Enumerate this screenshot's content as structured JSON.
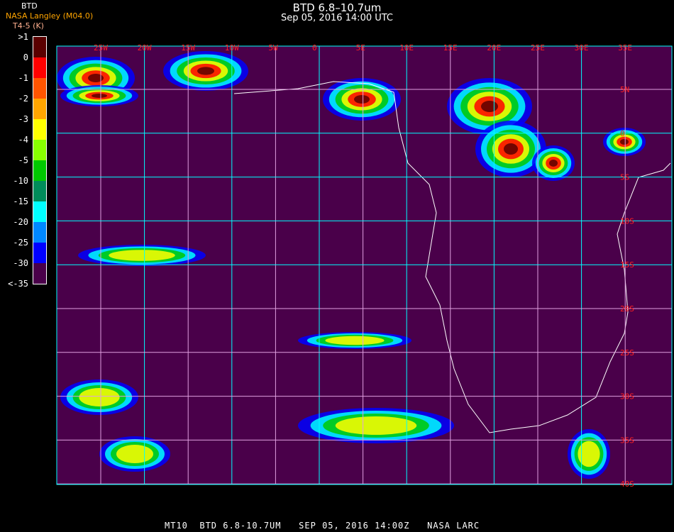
{
  "header": {
    "title": "BTD 6.8–10.7um",
    "subtitle": "Sep 05, 2016 14:00 UTC"
  },
  "legend": {
    "source": "NASA Langley (M04.0)",
    "product": "BTD",
    "units": "T4-5 (K)",
    "labels": [
      ">1",
      "0",
      "-1",
      "-2",
      "-3",
      "-4",
      "-5",
      "-10",
      "-15",
      "-20",
      "-25",
      "-30",
      "<-35"
    ],
    "colors": [
      "#5a0000",
      "#ff0000",
      "#ff5500",
      "#ffa500",
      "#ffff00",
      "#88ff00",
      "#00c800",
      "#008c5a",
      "#00ffff",
      "#0088ff",
      "#0000ff",
      "#4a004a"
    ]
  },
  "map": {
    "background": "#4a004a",
    "grid_color": "#00ffff",
    "alt_grid_color": "#e0a0e0",
    "lon_labels": [
      "25W",
      "20W",
      "15W",
      "10W",
      "5W",
      "0",
      "5E",
      "10E",
      "15E",
      "20E",
      "25E",
      "30E",
      "35E"
    ],
    "lat_labels": [
      "5N",
      "0",
      "5S",
      "10S",
      "15S",
      "20S",
      "25S",
      "30S",
      "35S",
      "40S"
    ]
  },
  "footer": "MT10  BTD 6.8-10.7UM   SEP 05, 2016 14:00Z   NASA LARC"
}
